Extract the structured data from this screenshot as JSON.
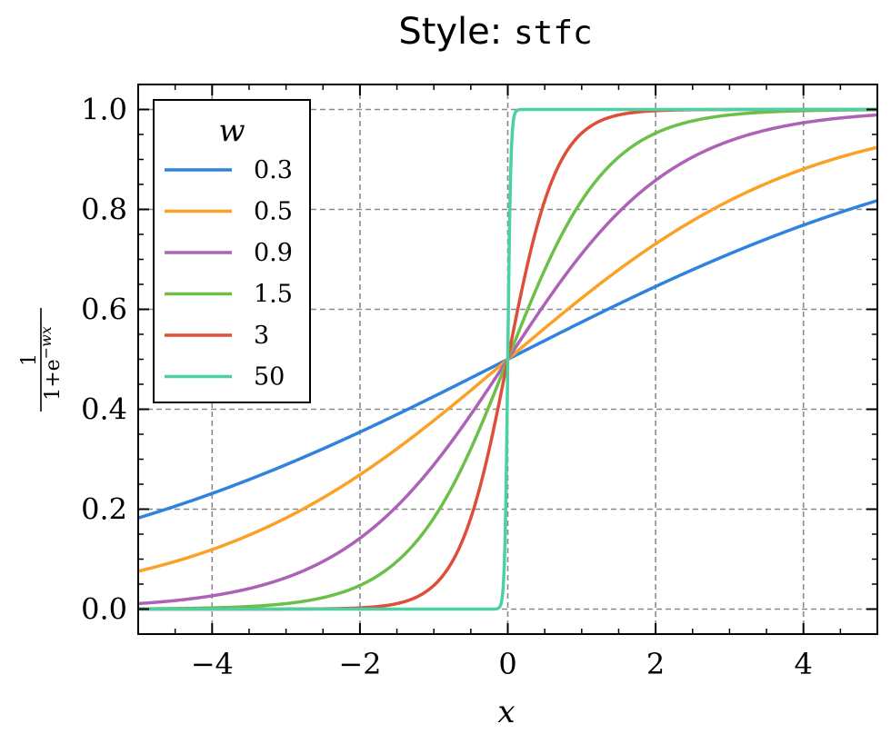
{
  "chart_data": {
    "type": "line",
    "title": {
      "prefix": "Style: ",
      "code": "stfc"
    },
    "xlabel": "x",
    "ylabel": {
      "numerator": "1",
      "denominator": "1+e",
      "exponent": "−wx"
    },
    "xlim": [
      -5,
      5
    ],
    "ylim": [
      -0.05,
      1.05
    ],
    "xticks": [
      {
        "value": -4,
        "label": "−4"
      },
      {
        "value": -2,
        "label": "−2"
      },
      {
        "value": 0,
        "label": "0"
      },
      {
        "value": 2,
        "label": "2"
      },
      {
        "value": 4,
        "label": "4"
      }
    ],
    "yticks": [
      {
        "value": 0.0,
        "label": "0.0"
      },
      {
        "value": 0.2,
        "label": "0.2"
      },
      {
        "value": 0.4,
        "label": "0.4"
      },
      {
        "value": 0.6,
        "label": "0.6"
      },
      {
        "value": 0.8,
        "label": "0.8"
      },
      {
        "value": 1.0,
        "label": "1.0"
      }
    ],
    "grid": true,
    "legend": {
      "title": "w",
      "placement": "top-left"
    },
    "series": [
      {
        "name": "0.3",
        "w": 0.3,
        "color": "#3182de"
      },
      {
        "name": "0.5",
        "w": 0.5,
        "color": "#fba126"
      },
      {
        "name": "0.9",
        "w": 0.9,
        "color": "#ae62b7"
      },
      {
        "name": "1.5",
        "w": 1.5,
        "color": "#6cc04a"
      },
      {
        "name": "3",
        "w": 3,
        "color": "#df4e3a"
      },
      {
        "name": "50",
        "w": 50,
        "color": "#4bd1a2"
      }
    ]
  }
}
